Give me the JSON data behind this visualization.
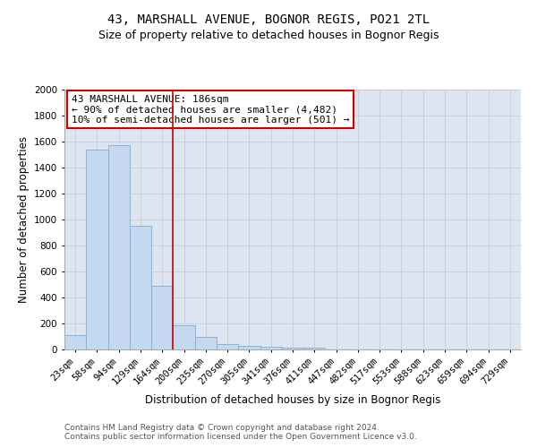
{
  "title": "43, MARSHALL AVENUE, BOGNOR REGIS, PO21 2TL",
  "subtitle": "Size of property relative to detached houses in Bognor Regis",
  "xlabel": "Distribution of detached houses by size in Bognor Regis",
  "ylabel": "Number of detached properties",
  "categories": [
    "23sqm",
    "58sqm",
    "94sqm",
    "129sqm",
    "164sqm",
    "200sqm",
    "235sqm",
    "270sqm",
    "305sqm",
    "341sqm",
    "376sqm",
    "411sqm",
    "447sqm",
    "482sqm",
    "517sqm",
    "553sqm",
    "588sqm",
    "623sqm",
    "659sqm",
    "694sqm",
    "729sqm"
  ],
  "values": [
    110,
    1540,
    1570,
    950,
    490,
    185,
    100,
    40,
    25,
    20,
    15,
    15,
    0,
    0,
    0,
    0,
    0,
    0,
    0,
    0,
    0
  ],
  "bar_color": "#c5d8ef",
  "bar_edge_color": "#7bafd4",
  "bar_width": 1.0,
  "vline_x": 4.5,
  "vline_color": "#cc0000",
  "annotation_text": "43 MARSHALL AVENUE: 186sqm\n← 90% of detached houses are smaller (4,482)\n10% of semi-detached houses are larger (501) →",
  "annotation_box_color": "#ffffff",
  "annotation_box_edge": "#cc0000",
  "ylim": [
    0,
    2000
  ],
  "yticks": [
    0,
    200,
    400,
    600,
    800,
    1000,
    1200,
    1400,
    1600,
    1800,
    2000
  ],
  "footer_text": "Contains HM Land Registry data © Crown copyright and database right 2024.\nContains public sector information licensed under the Open Government Licence v3.0.",
  "bg_color": "#ffffff",
  "grid_color": "#c8d0dc",
  "title_fontsize": 10,
  "subtitle_fontsize": 9,
  "axis_label_fontsize": 8.5,
  "tick_fontsize": 7.5,
  "footer_fontsize": 6.5,
  "annot_fontsize": 8
}
